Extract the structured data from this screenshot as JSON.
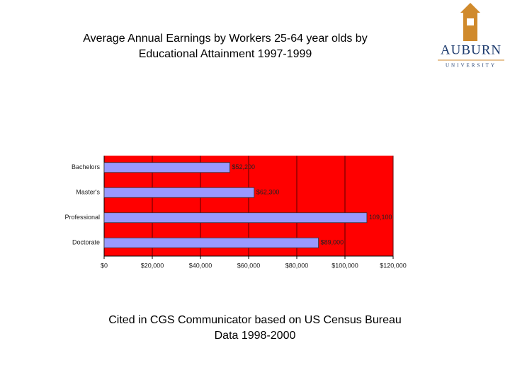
{
  "chart_data": {
    "type": "bar",
    "orientation": "horizontal",
    "title": "Average Annual  Earnings by Workers 25-64 year olds by Educational Attainment 1997-1999",
    "categories": [
      "Bachelors",
      "Master's",
      "Professional",
      "Doctorate"
    ],
    "values": [
      52200,
      62300,
      109100,
      89000
    ],
    "value_labels": [
      "$52,200",
      "$62,300",
      "109,100",
      "$89,000"
    ],
    "color": "#9999ff",
    "background": "#ff0000",
    "xlim": [
      0,
      120000
    ],
    "xticks": [
      {
        "value": 0,
        "label": "$0"
      },
      {
        "value": 20000,
        "label": "$20,000"
      },
      {
        "value": 40000,
        "label": "$40,000"
      },
      {
        "value": 60000,
        "label": "$60,000"
      },
      {
        "value": 80000,
        "label": "$80,000"
      },
      {
        "value": 100000,
        "label": "$100,000"
      },
      {
        "value": 120000,
        "label": "$120,000"
      }
    ],
    "grid": true,
    "footnote": "Cited in CGS Communicator based on US Census Bureau Data 1998-2000"
  },
  "logo": {
    "name": "AUBURN",
    "subtitle": "UNIVERSITY"
  }
}
